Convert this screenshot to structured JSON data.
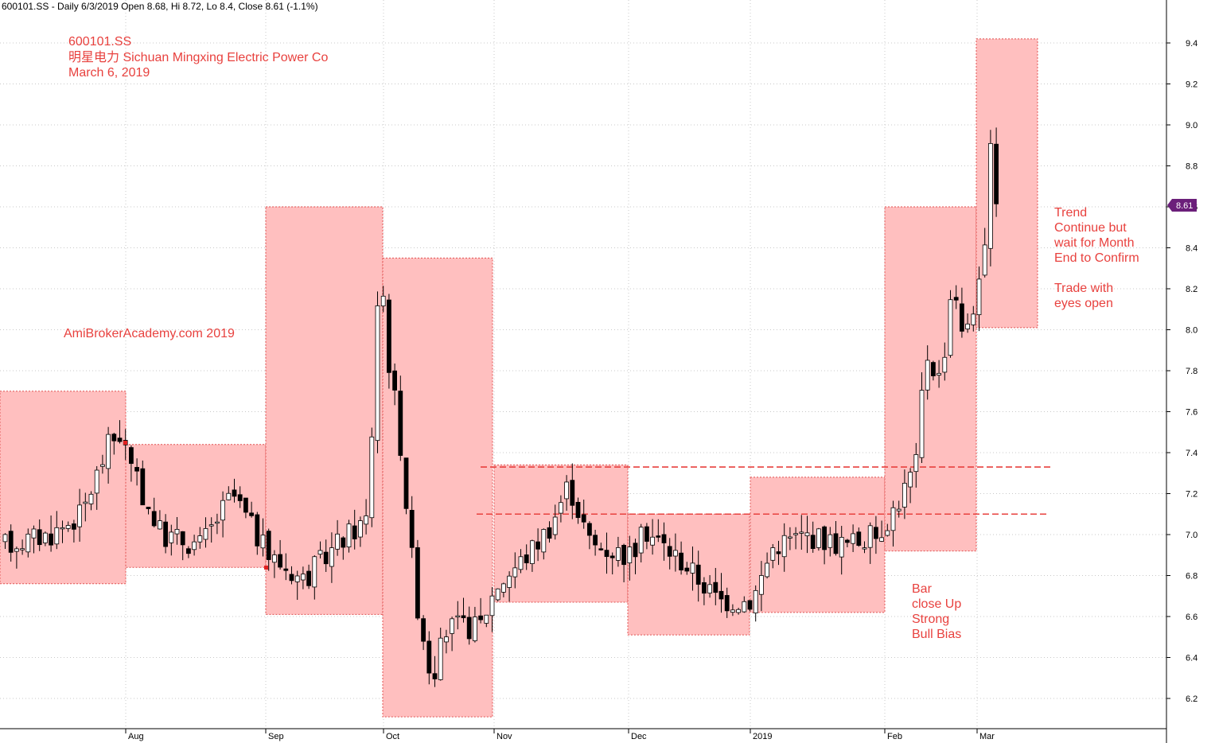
{
  "header": "600101.SS - Daily 6/3/2019 Open 8.68, Hi 8.72, Lo 8.4, Close 8.61 (-1.1%)",
  "title_lines": [
    "600101.SS",
    "明星电力  Sichuan Mingxing Electric Power Co",
    "March 6, 2019"
  ],
  "watermark": "AmiBrokerAcademy.com   2019",
  "annotations": {
    "trend": [
      "Trend",
      "Continue but",
      "wait for Month",
      "End to Confirm",
      "",
      "Trade with",
      "eyes open"
    ],
    "bar": [
      "Bar",
      "close Up",
      "Strong",
      "Bull Bias"
    ]
  },
  "last_price_label": "8.61",
  "colors": {
    "annotation": "#e8413e",
    "box_fill": "#ffbfbf",
    "box_border": "#e05050",
    "up_candle": "#ffffff",
    "down_candle": "#000000",
    "price_tag": "#6b1f7a",
    "grid": "#c8c8c8"
  },
  "chart_data": {
    "type": "candlestick",
    "y_ticks": [
      "6.2",
      "6.4",
      "6.6",
      "6.8",
      "7.0",
      "7.2",
      "7.4",
      "7.6",
      "7.8",
      "8.0",
      "8.2",
      "8.4",
      "8.6",
      "8.8",
      "9.0",
      "9.2",
      "9.4"
    ],
    "x_labels": [
      "Aug",
      "Sep",
      "Oct",
      "Nov",
      "Dec",
      "2019",
      "Feb",
      "Mar"
    ],
    "ylim": [
      6.04,
      9.6
    ],
    "grid": true,
    "monthly_ranges": [
      {
        "month": "Jul 2018",
        "high": 7.7,
        "low": 6.76
      },
      {
        "month": "Aug 2018",
        "high": 7.44,
        "low": 6.84
      },
      {
        "month": "Sep 2018",
        "high": 8.6,
        "low": 6.61
      },
      {
        "month": "Oct 2018",
        "high": 8.35,
        "low": 6.11
      },
      {
        "month": "Nov 2018",
        "high": 7.34,
        "low": 6.67
      },
      {
        "month": "Dec 2018",
        "high": 7.1,
        "low": 6.51
      },
      {
        "month": "Jan 2019",
        "high": 7.28,
        "low": 6.62
      },
      {
        "month": "Feb 2019",
        "high": 8.6,
        "low": 6.92
      },
      {
        "month": "Mar 2019",
        "high": 9.42,
        "low": 8.01
      }
    ],
    "reference_levels": [
      7.33,
      7.1
    ],
    "last_close": 8.61
  }
}
